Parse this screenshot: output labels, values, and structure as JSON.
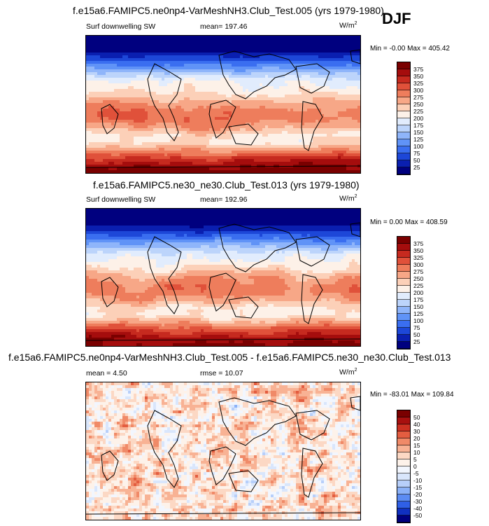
{
  "season": "DJF",
  "panels": [
    {
      "title": "f.e15a6.FAMIPC5.ne0np4-VarMeshNH3.Club_Test.005 (yrs 1979-1980)",
      "variable": "Surf downwelling SW",
      "mean_text": "mean= 197.46",
      "units": "W/m",
      "units_sup": "2",
      "minmax": "Min =  -0.00 Max = 405.42",
      "colorbar_labels": [
        "375",
        "350",
        "325",
        "300",
        "275",
        "250",
        "225",
        "200",
        "175",
        "150",
        "125",
        "100",
        "75",
        "50",
        "25"
      ]
    },
    {
      "title": "f.e15a6.FAMIPC5.ne30_ne30.Club_Test.013 (yrs 1979-1980)",
      "variable": "Surf downwelling SW",
      "mean_text": "mean= 192.96",
      "units": "W/m",
      "units_sup": "2",
      "minmax": "Min =   0.00 Max = 408.59",
      "colorbar_labels": [
        "375",
        "350",
        "325",
        "300",
        "275",
        "250",
        "225",
        "200",
        "175",
        "150",
        "125",
        "100",
        "75",
        "50",
        "25"
      ]
    },
    {
      "title": "f.e15a6.FAMIPC5.ne0np4-VarMeshNH3.Club_Test.005 - f.e15a6.FAMIPC5.ne30_ne30.Club_Test.013",
      "mean_text": "mean =   4.50",
      "rmse_text": "rmse =  10.07",
      "units": "W/m",
      "units_sup": "2",
      "minmax": "Min = -83.01 Max = 109.84",
      "colorbar_labels": [
        "50",
        "40",
        "30",
        "20",
        "15",
        "10",
        "5",
        "0",
        "-5",
        "-10",
        "-15",
        "-20",
        "-30",
        "-40",
        "-50"
      ]
    }
  ],
  "chart_data": [
    {
      "type": "heatmap",
      "title": "f.e15a6.FAMIPC5.ne0np4-VarMeshNH3.Club_Test.005 (yrs 1979-1980)",
      "variable": "Surf downwelling SW",
      "units": "W/m2",
      "mean": 197.46,
      "min": -0.0,
      "max": 405.42,
      "levels": [
        25,
        50,
        75,
        100,
        125,
        150,
        175,
        200,
        225,
        250,
        275,
        300,
        325,
        350,
        375
      ],
      "zonal_mean_profile_north_to_south": [
        0,
        5,
        20,
        60,
        110,
        160,
        200,
        215,
        240,
        270,
        290,
        290,
        270,
        230,
        220,
        270,
        330,
        370,
        390
      ],
      "colors": [
        "#00007f",
        "#0a1fb0",
        "#1d47d8",
        "#3a6ef0",
        "#6093f7",
        "#8fb5fa",
        "#bcd4fb",
        "#e1ecfd",
        "#fdf1e8",
        "#fcd0b8",
        "#f7a787",
        "#ee7d5c",
        "#e0513a",
        "#c62a1f",
        "#a50d0d",
        "#7a0000"
      ]
    },
    {
      "type": "heatmap",
      "title": "f.e15a6.FAMIPC5.ne30_ne30.Club_Test.013 (yrs 1979-1980)",
      "variable": "Surf downwelling SW",
      "units": "W/m2",
      "mean": 192.96,
      "min": 0.0,
      "max": 408.59,
      "levels": [
        25,
        50,
        75,
        100,
        125,
        150,
        175,
        200,
        225,
        250,
        275,
        300,
        325,
        350,
        375
      ],
      "zonal_mean_profile_north_to_south": [
        0,
        5,
        15,
        50,
        100,
        150,
        195,
        210,
        235,
        265,
        285,
        285,
        265,
        225,
        215,
        265,
        325,
        365,
        385
      ],
      "colors": [
        "#00007f",
        "#0a1fb0",
        "#1d47d8",
        "#3a6ef0",
        "#6093f7",
        "#8fb5fa",
        "#bcd4fb",
        "#e1ecfd",
        "#fdf1e8",
        "#fcd0b8",
        "#f7a787",
        "#ee7d5c",
        "#e0513a",
        "#c62a1f",
        "#a50d0d",
        "#7a0000"
      ]
    },
    {
      "type": "heatmap",
      "title": "f.e15a6.FAMIPC5.ne0np4-VarMeshNH3.Club_Test.005 - f.e15a6.FAMIPC5.ne30_ne30.Club_Test.013",
      "units": "W/m2",
      "mean": 4.5,
      "rmse": 10.07,
      "min": -83.01,
      "max": 109.84,
      "levels": [
        -50,
        -40,
        -30,
        -20,
        -15,
        -10,
        -5,
        0,
        5,
        10,
        15,
        20,
        30,
        40,
        50
      ],
      "colors": [
        "#00007f",
        "#1030c0",
        "#2f5fe6",
        "#5c8cf3",
        "#8cb2f8",
        "#b7cffa",
        "#d9e6fc",
        "#f2f6fe",
        "#fdf2ea",
        "#fcd8c4",
        "#f8b294",
        "#f08a68",
        "#e35d40",
        "#cc3122",
        "#a8100f",
        "#7a0000"
      ]
    }
  ]
}
